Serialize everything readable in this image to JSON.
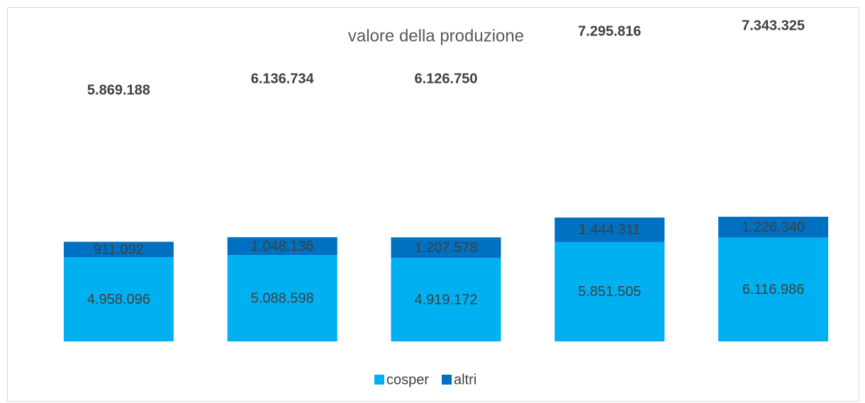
{
  "chart_data": {
    "type": "stacked_bar",
    "title": "valore della produzione",
    "categories": [
      null,
      null,
      null,
      null,
      null
    ],
    "series": [
      {
        "name": "cosper",
        "color": "#00b0f0",
        "values": [
          4958096,
          5088598,
          4919172,
          5851505,
          6116986
        ],
        "value_labels": [
          "4.958.096",
          "5.088.598",
          "4.919.172",
          "5.851.505",
          "6.116.986"
        ]
      },
      {
        "name": "altri",
        "color": "#0070c0",
        "values": [
          911092,
          1048136,
          1207578,
          1444311,
          1226340
        ],
        "value_labels": [
          "911.092",
          "1.048.136",
          "1.207.578",
          "1.444.311",
          "1.226.340"
        ]
      }
    ],
    "totals": {
      "values": [
        5869188,
        6136734,
        6126750,
        7295816,
        7343325
      ],
      "value_labels": [
        "5.869.188",
        "6.136.734",
        "6.126.750",
        "7.295.816",
        "7.343.325"
      ]
    },
    "legend": "bottom"
  }
}
